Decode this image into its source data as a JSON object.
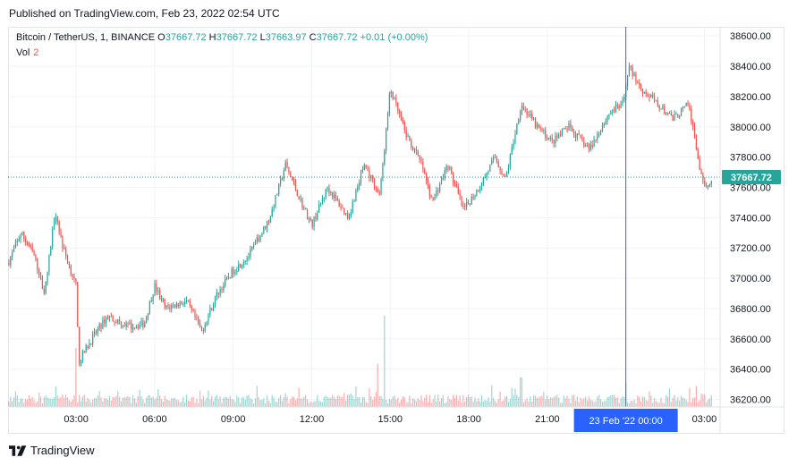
{
  "published_text": "Published on TradingView.com, Feb 23, 2022 02:54 UTC",
  "footer": {
    "brand": "TradingView",
    "logo_icon": "tradingview-logo-icon"
  },
  "legend": {
    "symbol": "Bitcoin / TetherUS, 1, BINANCE",
    "o_label": "O",
    "o_value": "37667.72",
    "h_label": "H",
    "h_value": "37667.72",
    "l_label": "L",
    "l_value": "37663.97",
    "c_label": "C",
    "c_value": "37667.72",
    "change": "+0.01 (+0.00%)",
    "vol_label": "Vol",
    "vol_value": "2"
  },
  "colors": {
    "up": "#26a69a",
    "down": "#ef5350",
    "crosshair": "#2962ff",
    "price_tag": "#26a69a",
    "grid": "#f0f3fa"
  },
  "chart_data": {
    "type": "candlestick",
    "symbol": "BTCUSDT",
    "exchange": "BINANCE",
    "interval_minutes": 1,
    "yticks": [
      36200,
      36400,
      36600,
      36800,
      37000,
      37200,
      37400,
      37600,
      37800,
      38000,
      38200,
      38400,
      38600
    ],
    "ytick_labels": [
      "36200.00",
      "36400.00",
      "36600.00",
      "36800.00",
      "37000.00",
      "37200.00",
      "37400.00",
      "37600.00",
      "37800.00",
      "38000.00",
      "38200.00",
      "38400.00",
      "38600.00"
    ],
    "ylim": [
      36150,
      38660
    ],
    "xticks": [
      {
        "label": "03:00",
        "hour": 3
      },
      {
        "label": "06:00",
        "hour": 6
      },
      {
        "label": "09:00",
        "hour": 9
      },
      {
        "label": "12:00",
        "hour": 12
      },
      {
        "label": "15:00",
        "hour": 15
      },
      {
        "label": "18:00",
        "hour": 18
      },
      {
        "label": "21:00",
        "hour": 21
      },
      {
        "label": "03:00",
        "hour": 27
      }
    ],
    "xlim_hours": [
      0.4,
      27.6
    ],
    "crosshair": {
      "hour": 24,
      "label": "23 Feb '22   00:00"
    },
    "last_price": 37667.72,
    "last_price_label": "37667.72",
    "price_path": [
      [
        0.4,
        37100
      ],
      [
        0.9,
        37300
      ],
      [
        1.4,
        37150
      ],
      [
        1.8,
        36900
      ],
      [
        2.2,
        37450
      ],
      [
        2.5,
        37200
      ],
      [
        3.0,
        36950
      ],
      [
        3.1,
        36450
      ],
      [
        3.6,
        36600
      ],
      [
        4.2,
        36750
      ],
      [
        5.0,
        36680
      ],
      [
        5.6,
        36700
      ],
      [
        6.0,
        36950
      ],
      [
        6.4,
        36800
      ],
      [
        7.2,
        36850
      ],
      [
        7.8,
        36650
      ],
      [
        8.4,
        36900
      ],
      [
        9.0,
        37050
      ],
      [
        9.6,
        37150
      ],
      [
        10.4,
        37400
      ],
      [
        11.0,
        37750
      ],
      [
        11.6,
        37500
      ],
      [
        12.0,
        37350
      ],
      [
        12.6,
        37600
      ],
      [
        13.4,
        37400
      ],
      [
        14.0,
        37750
      ],
      [
        14.6,
        37550
      ],
      [
        15.0,
        38250
      ],
      [
        15.6,
        37950
      ],
      [
        16.2,
        37750
      ],
      [
        16.6,
        37500
      ],
      [
        17.2,
        37750
      ],
      [
        17.8,
        37450
      ],
      [
        18.4,
        37600
      ],
      [
        19.0,
        37800
      ],
      [
        19.4,
        37650
      ],
      [
        20.0,
        38150
      ],
      [
        20.6,
        38000
      ],
      [
        21.2,
        37900
      ],
      [
        21.8,
        38000
      ],
      [
        22.6,
        37850
      ],
      [
        23.4,
        38100
      ],
      [
        23.9,
        38150
      ],
      [
        24.1,
        38400
      ],
      [
        24.6,
        38250
      ],
      [
        25.2,
        38150
      ],
      [
        25.8,
        38050
      ],
      [
        26.4,
        38150
      ],
      [
        26.8,
        37750
      ],
      [
        27.0,
        37580
      ],
      [
        27.3,
        37667.72
      ]
    ],
    "volume_spikes": [
      {
        "hour": 3.0,
        "value": 2.2
      },
      {
        "hour": 14.8,
        "value": 3.4
      },
      {
        "hour": 14.5,
        "value": 1.6
      },
      {
        "hour": 20.0,
        "value": 1.1
      },
      {
        "hour": 24.0,
        "value": 0.9
      },
      {
        "hour": 26.9,
        "value": 0.5
      }
    ]
  }
}
